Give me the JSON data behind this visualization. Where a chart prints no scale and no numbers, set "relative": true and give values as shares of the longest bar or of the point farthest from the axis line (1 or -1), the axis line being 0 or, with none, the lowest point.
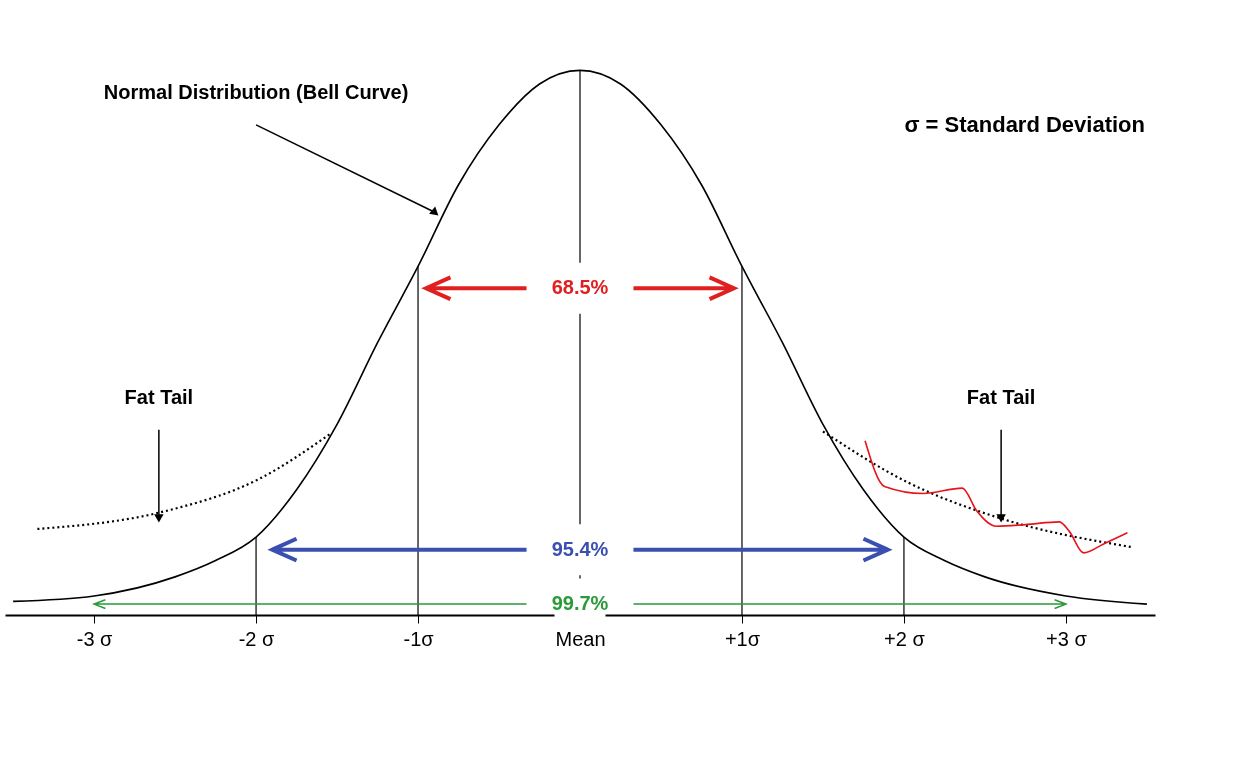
{
  "chart_data": {
    "type": "line",
    "relative": true,
    "grid": false,
    "xlim": [
      -3.55,
      3.55
    ],
    "xticks": [
      {
        "value": -3,
        "label": "-3 σ"
      },
      {
        "value": -2,
        "label": "-2 σ"
      },
      {
        "value": -1,
        "label": "-1σ"
      },
      {
        "value": 0,
        "label": "Mean"
      },
      {
        "value": 1,
        "label": "+1σ"
      },
      {
        "value": 2,
        "label": "+2 σ"
      },
      {
        "value": 3,
        "label": "+3 σ"
      }
    ],
    "series": [
      {
        "color": "#000000",
        "line_style": "solid",
        "x": [
          -3.5,
          -3,
          -2.5,
          -2.25,
          -2,
          -1.75,
          -1.5,
          -1.25,
          -1,
          -0.75,
          -0.5,
          -0.25,
          0,
          0.25,
          0.5,
          0.75,
          1,
          1.25,
          1.5,
          1.75,
          2,
          2.25,
          2.5,
          3,
          3.5
        ],
        "values": [
          0.025,
          0.035,
          0.07,
          0.1,
          0.143,
          0.23,
          0.35,
          0.5,
          0.64,
          0.79,
          0.9,
          0.975,
          1,
          0.975,
          0.9,
          0.79,
          0.64,
          0.5,
          0.35,
          0.23,
          0.143,
          0.1,
          0.07,
          0.035,
          0.02
        ]
      },
      {
        "color": "#000000",
        "line_style": "dotted",
        "x": [
          -3.35,
          -2.57,
          -1.98,
          -1.54
        ],
        "values": [
          0.158,
          0.19,
          0.25,
          0.333
        ]
      },
      {
        "color": "#000000",
        "line_style": "dotted",
        "x": [
          1.5,
          2.02,
          2.58,
          3.4
        ],
        "values": [
          0.337,
          0.244,
          0.179,
          0.125
        ]
      },
      {
        "color": "#e8141c",
        "line_style": "solid",
        "x": [
          1.76,
          1.88,
          2.12,
          2.36,
          2.45,
          2.57,
          2.75,
          2.96,
          3.02,
          3.11,
          3.23,
          3.38
        ],
        "values": [
          0.32,
          0.236,
          0.223,
          0.233,
          0.191,
          0.163,
          0.166,
          0.171,
          0.154,
          0.114,
          0.13,
          0.151
        ]
      }
    ],
    "ref_lines": [
      {
        "axis": "x",
        "value": -2
      },
      {
        "axis": "x",
        "value": -1
      },
      {
        "axis": "x",
        "value": 0
      },
      {
        "axis": "x",
        "value": 1
      },
      {
        "axis": "x",
        "value": 2
      }
    ],
    "annotations": [
      {
        "text": "68.5%",
        "x": 0,
        "y": 0.6
      },
      {
        "text": "95.4%",
        "x": 0,
        "y": 0.12
      },
      {
        "text": "99.7%",
        "x": 0,
        "y": 0.02
      },
      {
        "text": "Normal Distribution (Bell Curve)",
        "x": -0.9,
        "y": 0.74
      },
      {
        "text": "Fat Tail",
        "x": -2.6,
        "y": 0.18
      },
      {
        "text": "Fat Tail",
        "x": 2.6,
        "y": 0.18
      },
      "σ = Standard Deviation"
    ]
  }
}
